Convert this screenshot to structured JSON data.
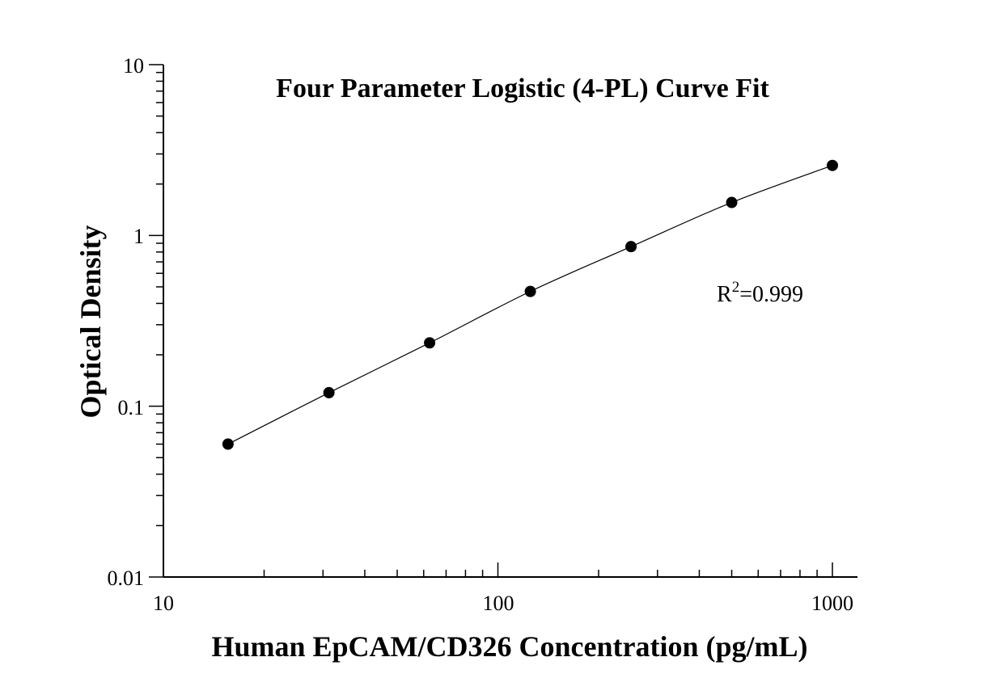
{
  "chart_data": {
    "type": "scatter",
    "title": "Four Parameter Logistic (4-PL) Curve Fit",
    "xlabel": "Human EpCAM/CD326 Concentration (pg/mL)",
    "ylabel": "Optical Density",
    "xscale": "log",
    "yscale": "log",
    "xlim": [
      10,
      1000
    ],
    "ylim": [
      0.01,
      10
    ],
    "x_ticks": [
      "10",
      "100",
      "1000"
    ],
    "y_ticks": [
      "0.01",
      "0.1",
      "1",
      "10"
    ],
    "grid": false,
    "annotation": {
      "base": "R",
      "superscript": "2",
      "rest": "=0.999"
    },
    "series": [
      {
        "x": [
          15.6,
          31.25,
          62.5,
          125,
          250,
          500,
          1000
        ],
        "y": [
          0.06,
          0.12,
          0.235,
          0.47,
          0.86,
          1.56,
          2.57
        ]
      }
    ],
    "fit_curve": true
  }
}
